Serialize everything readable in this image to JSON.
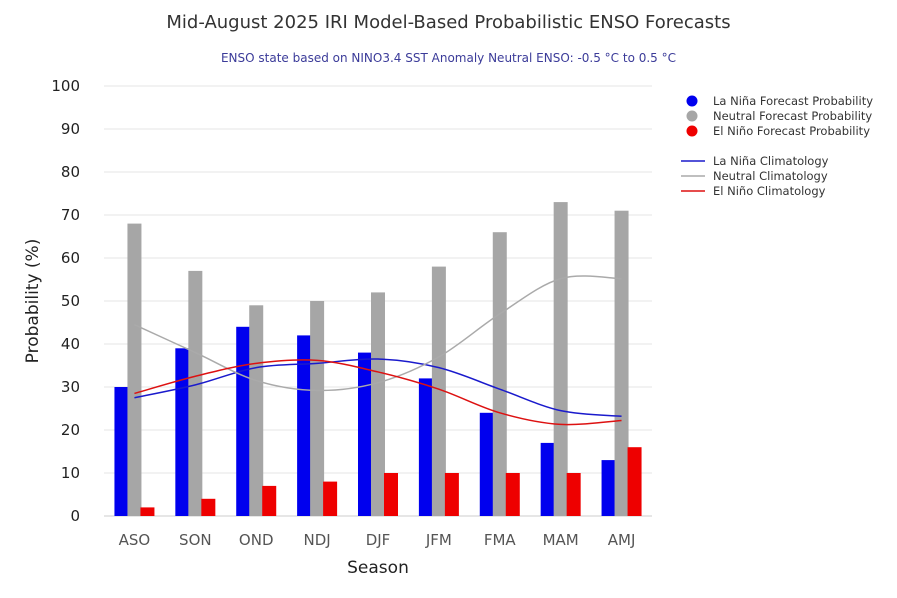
{
  "chart_data": {
    "type": "bar",
    "title": "Mid-August 2025 IRI Model-Based Probabilistic ENSO Forecasts",
    "subtitle": "ENSO state based on NINO3.4 SST Anomaly Neutral ENSO: -0.5 °C to 0.5 °C",
    "xlabel": "Season",
    "ylabel": "Probability (%)",
    "ylim": [
      0,
      100
    ],
    "yticks": [
      "0",
      "10",
      "20",
      "30",
      "40",
      "50",
      "60",
      "70",
      "80",
      "90",
      "100"
    ],
    "categories": [
      "ASO",
      "SON",
      "OND",
      "NDJ",
      "DJF",
      "JFM",
      "FMA",
      "MAM",
      "AMJ"
    ],
    "grid": true,
    "legend_position": "top-right",
    "series": [
      {
        "name": "La Niña Forecast Probability",
        "kind": "bar",
        "color": "#0000ee",
        "values": [
          30,
          39,
          44,
          42,
          38,
          32,
          24,
          17,
          13
        ]
      },
      {
        "name": "Neutral Forecast Probability",
        "kind": "bar",
        "color": "#a6a6a6",
        "values": [
          68,
          57,
          49,
          50,
          52,
          58,
          66,
          73,
          71
        ]
      },
      {
        "name": "El Niño Forecast Probability",
        "kind": "bar",
        "color": "#ee0000",
        "values": [
          2,
          4,
          7,
          8,
          10,
          10,
          10,
          10,
          16
        ]
      },
      {
        "name": "La Niña Climatology",
        "kind": "line",
        "color": "#1a1acc",
        "values": [
          27.5,
          30.5,
          34.5,
          35.5,
          36.5,
          34.5,
          29.5,
          24.5,
          23.2
        ]
      },
      {
        "name": "Neutral Climatology",
        "kind": "line",
        "color": "#aaaaaa",
        "values": [
          44.5,
          38,
          31.5,
          29.2,
          31,
          37,
          47,
          55.2,
          55.2
        ]
      },
      {
        "name": "El Niño Climatology",
        "kind": "line",
        "color": "#dd1111",
        "values": [
          28.5,
          32.5,
          35.5,
          36.2,
          33.5,
          29.5,
          24,
          21.3,
          22.2
        ]
      }
    ]
  }
}
